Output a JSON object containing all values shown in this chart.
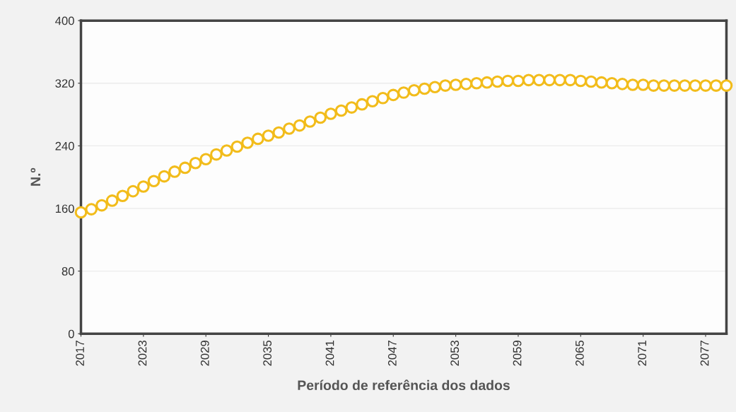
{
  "chart_data": {
    "type": "scatter",
    "xlabel": "Período de referência dos dados",
    "ylabel": "N.º",
    "x": [
      2017,
      2018,
      2019,
      2020,
      2021,
      2022,
      2023,
      2024,
      2025,
      2026,
      2027,
      2028,
      2029,
      2030,
      2031,
      2032,
      2033,
      2034,
      2035,
      2036,
      2037,
      2038,
      2039,
      2040,
      2041,
      2042,
      2043,
      2044,
      2045,
      2046,
      2047,
      2048,
      2049,
      2050,
      2051,
      2052,
      2053,
      2054,
      2055,
      2056,
      2057,
      2058,
      2059,
      2060,
      2061,
      2062,
      2063,
      2064,
      2065,
      2066,
      2067,
      2068,
      2069,
      2070,
      2071,
      2072,
      2073,
      2074,
      2075,
      2076,
      2077,
      2078,
      2079
    ],
    "series": [
      {
        "color": "#f2bc1b",
        "values": [
          155,
          159,
          164,
          170,
          176,
          182,
          188,
          195,
          201,
          207,
          212,
          218,
          223,
          229,
          234,
          239,
          244,
          249,
          253,
          257,
          262,
          266,
          271,
          276,
          281,
          285,
          289,
          293,
          297,
          301,
          305,
          308,
          311,
          313,
          315,
          317,
          318,
          319,
          320,
          321,
          322,
          323,
          323,
          324,
          324,
          324,
          324,
          324,
          323,
          322,
          321,
          320,
          319,
          318,
          318,
          317,
          317,
          317,
          317,
          317,
          317,
          317,
          317
        ]
      }
    ],
    "xlim": [
      2017,
      2079
    ],
    "xticks": [
      2017,
      2023,
      2029,
      2035,
      2041,
      2047,
      2053,
      2059,
      2065,
      2071,
      2077
    ],
    "ylim": [
      0,
      400
    ],
    "yticks": [
      0,
      80,
      160,
      240,
      320,
      400
    ],
    "grid": "y",
    "marker": "circle",
    "legend": false
  }
}
